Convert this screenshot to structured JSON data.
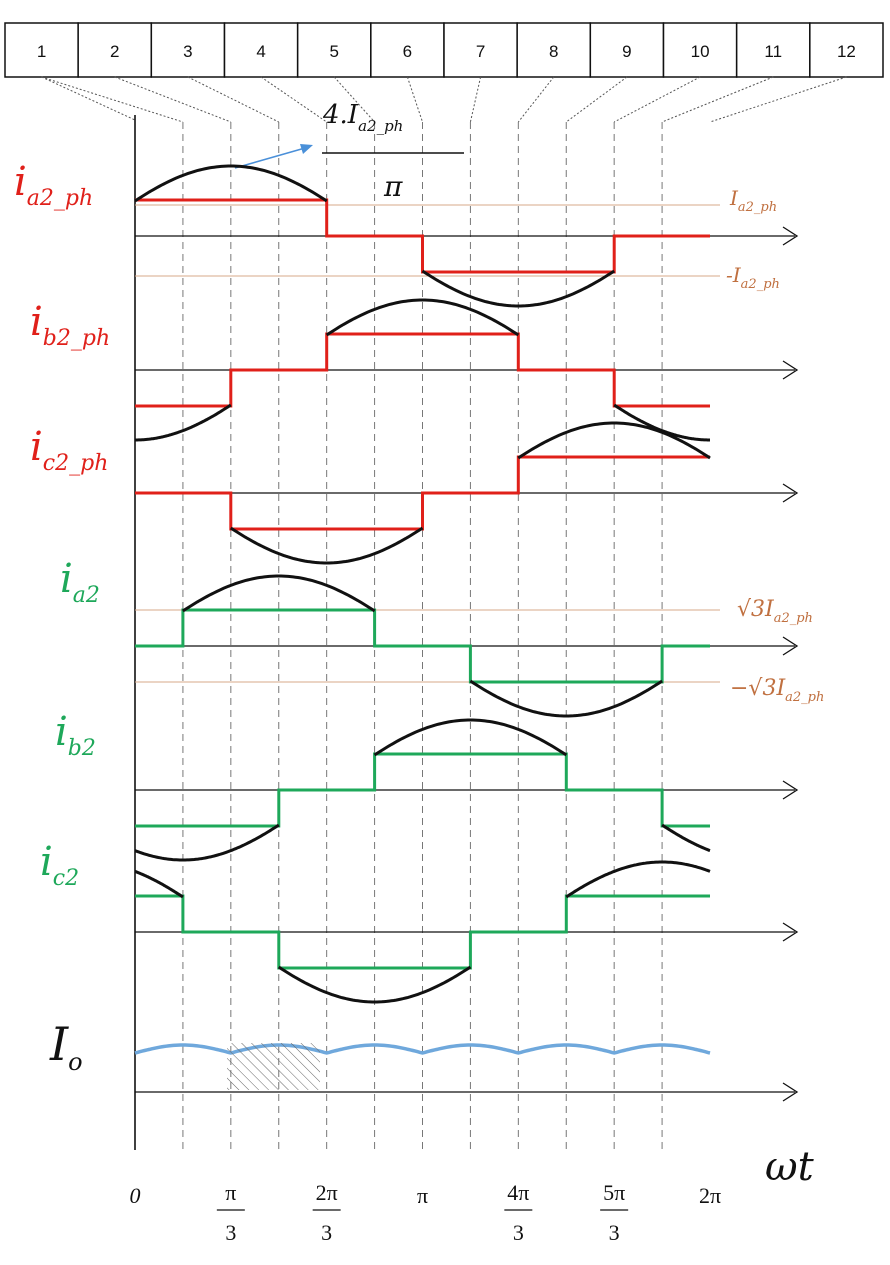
{
  "segments": [
    "1",
    "2",
    "3",
    "4",
    "5",
    "6",
    "7",
    "8",
    "9",
    "10",
    "11",
    "12"
  ],
  "amplitude_annotation": {
    "numerator_main": "4.I",
    "numerator_sub": "a2_ph",
    "denominator": "π"
  },
  "signals": [
    {
      "id": "ia2_ph",
      "main": "i",
      "sub": "a2_ph",
      "color": "#e0201a"
    },
    {
      "id": "ib2_ph",
      "main": "i",
      "sub": "b2_ph",
      "color": "#e0201a"
    },
    {
      "id": "ic2_ph",
      "main": "i",
      "sub": "c2_ph",
      "color": "#e0201a"
    },
    {
      "id": "ia2",
      "main": "i",
      "sub": "a2",
      "color": "#1ea85a"
    },
    {
      "id": "ib2",
      "main": "i",
      "sub": "b2",
      "color": "#1ea85a"
    },
    {
      "id": "ic2",
      "main": "i",
      "sub": "c2",
      "color": "#1ea85a"
    },
    {
      "id": "Io",
      "main": "I",
      "sub": "o",
      "color": "#111111"
    }
  ],
  "level_labels": {
    "pos_ph_main": "I",
    "pos_ph_sub": "a2_ph",
    "neg_ph_main": "-I",
    "neg_ph_sub": "a2_ph",
    "pos_line_main": "√3I",
    "pos_line_sub": "a2_ph",
    "neg_line_main": "−√3I",
    "neg_line_sub": "a2_ph"
  },
  "x_axis_label": "ωt",
  "ticks": [
    {
      "id": "t0",
      "num": "0",
      "den": ""
    },
    {
      "id": "t1",
      "num": "π",
      "den": "3"
    },
    {
      "id": "t2",
      "num": "2π",
      "den": "3"
    },
    {
      "id": "t3",
      "num": "π",
      "den": ""
    },
    {
      "id": "t4",
      "num": "4π",
      "den": "3"
    },
    {
      "id": "t5",
      "num": "5π",
      "den": "3"
    },
    {
      "id": "t6",
      "num": "2π",
      "den": ""
    }
  ],
  "colors": {
    "phase_current": "#e0201a",
    "line_current": "#1ea85a",
    "fundamental": "#111111",
    "output_ripple": "#6fa8dc",
    "level_line": "#d7a98a",
    "level_text": "#c07040",
    "arrow": "#4a90d9"
  }
}
